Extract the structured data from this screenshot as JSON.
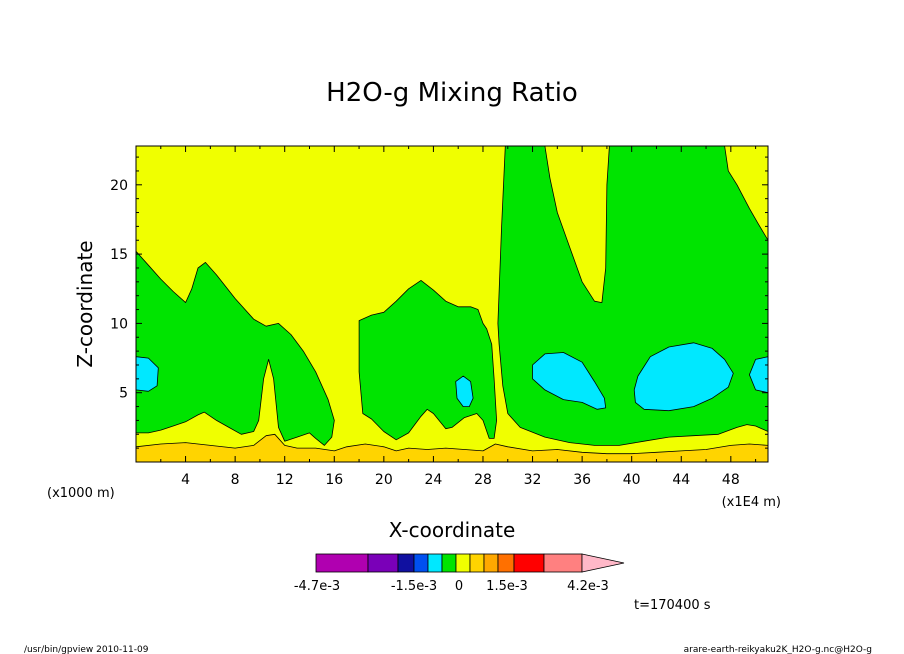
{
  "chart_data": {
    "type": "heatmap",
    "title": "H2O-g Mixing Ratio",
    "xlabel": "X-coordinate",
    "ylabel": "Z-coordinate",
    "x_units": "(x1E4 m)",
    "y_units": "(x1000 m)",
    "xlim": [
      0,
      51
    ],
    "ylim": [
      0,
      22.8
    ],
    "x_ticks": [
      4,
      8,
      12,
      16,
      20,
      24,
      28,
      32,
      36,
      40,
      44,
      48
    ],
    "y_ticks": [
      5,
      10,
      15,
      20
    ],
    "time_label": "t=170400 s",
    "colorbar": {
      "labels": [
        "-4.7e-3",
        "-1.5e-3",
        "0",
        "1.5e-3",
        "4.2e-3"
      ],
      "colors": [
        "#b000b0",
        "#7a00b8",
        "#1010a0",
        "#0050f0",
        "#00e8ff",
        "#00e400",
        "#f0ff00",
        "#ffd400",
        "#ffa800",
        "#ff7000",
        "#ff0000",
        "#ff8080",
        "#ffb8c8"
      ]
    },
    "field_levels": {
      "yellow": "#f0ff00",
      "green": "#00e400",
      "cyan": "#00e8ff",
      "orange": "#ffd400"
    },
    "regions": {
      "green_main": [
        [
          0,
          15.2
        ],
        [
          1,
          14.2
        ],
        [
          2,
          13.2
        ],
        [
          3,
          12.3
        ],
        [
          4,
          11.5
        ],
        [
          4.5,
          12.5
        ],
        [
          5,
          14.0
        ],
        [
          5.6,
          14.4
        ],
        [
          6.5,
          13.5
        ],
        [
          8,
          11.8
        ],
        [
          9.5,
          10.3
        ],
        [
          10.5,
          9.8
        ],
        [
          11.5,
          10.0
        ],
        [
          12.5,
          9.2
        ],
        [
          13.5,
          8.0
        ],
        [
          14.5,
          6.5
        ],
        [
          15.5,
          4.5
        ],
        [
          16,
          3.0
        ],
        [
          15.8,
          1.8
        ],
        [
          15.2,
          1.2
        ],
        [
          14.5,
          1.7
        ],
        [
          14,
          2.1
        ],
        [
          13,
          1.8
        ],
        [
          12,
          1.5
        ],
        [
          11.5,
          2.5
        ],
        [
          11.1,
          6.0
        ],
        [
          10.7,
          7.4
        ],
        [
          10.3,
          6.0
        ],
        [
          9.9,
          3.0
        ],
        [
          9.5,
          2.2
        ],
        [
          8.5,
          2.0
        ],
        [
          7.5,
          2.5
        ],
        [
          6.5,
          3.0
        ],
        [
          5.5,
          3.6
        ],
        [
          5,
          3.4
        ],
        [
          4,
          2.9
        ],
        [
          3,
          2.6
        ],
        [
          2,
          2.3
        ],
        [
          1,
          2.1
        ],
        [
          0,
          2.1
        ]
      ],
      "green_mid": [
        [
          18,
          10.2
        ],
        [
          19,
          10.6
        ],
        [
          20,
          10.8
        ],
        [
          21,
          11.6
        ],
        [
          22,
          12.5
        ],
        [
          23,
          13.1
        ],
        [
          24,
          12.4
        ],
        [
          25,
          11.6
        ],
        [
          26,
          11.2
        ],
        [
          27,
          11.2
        ],
        [
          27.6,
          11.0
        ],
        [
          28,
          10.0
        ],
        [
          28.3,
          9.6
        ],
        [
          28.7,
          8.5
        ],
        [
          28.9,
          6.0
        ],
        [
          29.1,
          3.0
        ],
        [
          28.9,
          1.7
        ],
        [
          28.5,
          1.7
        ],
        [
          28,
          3.0
        ],
        [
          27.5,
          3.5
        ],
        [
          26.5,
          3.2
        ],
        [
          25.5,
          2.5
        ],
        [
          25,
          2.4
        ],
        [
          24,
          3.5
        ],
        [
          23.5,
          3.8
        ],
        [
          23,
          3.3
        ],
        [
          22,
          2.1
        ],
        [
          21,
          1.6
        ],
        [
          20,
          2.2
        ],
        [
          19,
          3.1
        ],
        [
          18.3,
          3.5
        ],
        [
          18,
          6.5
        ]
      ],
      "green_right": [
        [
          29.2,
          10.0
        ],
        [
          29.5,
          17.0
        ],
        [
          29.8,
          22.8
        ],
        [
          33,
          22.8
        ],
        [
          33.4,
          20.5
        ],
        [
          34,
          18.0
        ],
        [
          35,
          15.5
        ],
        [
          36,
          13.0
        ],
        [
          37,
          11.6
        ],
        [
          37.6,
          11.5
        ],
        [
          37.9,
          14.0
        ],
        [
          38.0,
          20.0
        ],
        [
          38.2,
          22.8
        ],
        [
          47.5,
          22.8
        ],
        [
          47.8,
          21.0
        ],
        [
          48.5,
          20.0
        ],
        [
          49.5,
          18.3
        ],
        [
          50.2,
          17.2
        ],
        [
          51,
          16.0
        ],
        [
          51,
          2.2
        ],
        [
          50,
          2.6
        ],
        [
          49.3,
          2.7
        ],
        [
          48.5,
          2.5
        ],
        [
          47,
          2.0
        ],
        [
          45,
          1.9
        ],
        [
          43,
          1.8
        ],
        [
          41,
          1.5
        ],
        [
          39,
          1.2
        ],
        [
          37,
          1.2
        ],
        [
          35,
          1.4
        ],
        [
          33,
          1.8
        ],
        [
          31,
          2.5
        ],
        [
          30,
          3.5
        ],
        [
          29.6,
          5.5
        ],
        [
          29.3,
          8.5
        ]
      ],
      "cyan_1": [
        [
          0,
          7.6
        ],
        [
          1,
          7.5
        ],
        [
          1.8,
          6.8
        ],
        [
          1.7,
          5.5
        ],
        [
          1,
          5.1
        ],
        [
          0,
          5.2
        ]
      ],
      "cyan_2": [
        [
          25.8,
          5.8
        ],
        [
          26.4,
          6.2
        ],
        [
          27,
          5.8
        ],
        [
          27.2,
          4.6
        ],
        [
          26.9,
          4.0
        ],
        [
          26.4,
          4.0
        ],
        [
          25.9,
          4.6
        ]
      ],
      "cyan_3": [
        [
          32,
          7.0
        ],
        [
          33,
          7.8
        ],
        [
          34.5,
          7.9
        ],
        [
          36,
          7.2
        ],
        [
          37,
          5.8
        ],
        [
          37.8,
          4.6
        ],
        [
          37.9,
          3.9
        ],
        [
          37.2,
          3.8
        ],
        [
          36,
          4.3
        ],
        [
          34.5,
          4.5
        ],
        [
          33,
          5.2
        ],
        [
          32,
          6.0
        ]
      ],
      "cyan_4": [
        [
          40.5,
          6.2
        ],
        [
          41.5,
          7.6
        ],
        [
          43,
          8.3
        ],
        [
          45,
          8.6
        ],
        [
          46.5,
          8.2
        ],
        [
          47.5,
          7.4
        ],
        [
          48.2,
          6.4
        ],
        [
          47.8,
          5.4
        ],
        [
          46.5,
          4.6
        ],
        [
          45,
          4.0
        ],
        [
          43,
          3.7
        ],
        [
          41,
          3.8
        ],
        [
          40.3,
          4.3
        ],
        [
          40.2,
          5.2
        ]
      ],
      "cyan_5": [
        [
          51,
          7.6
        ],
        [
          50,
          7.4
        ],
        [
          49.5,
          6.3
        ],
        [
          50,
          5.2
        ],
        [
          51,
          5.0
        ]
      ],
      "orange_bottom": [
        [
          0,
          1.1
        ],
        [
          2,
          1.3
        ],
        [
          4,
          1.4
        ],
        [
          6,
          1.2
        ],
        [
          8,
          1.0
        ],
        [
          9.5,
          1.2
        ],
        [
          10.5,
          1.9
        ],
        [
          11.2,
          2.0
        ],
        [
          12,
          1.2
        ],
        [
          13,
          1.0
        ],
        [
          14.5,
          1.0
        ],
        [
          16,
          0.8
        ],
        [
          17,
          1.1
        ],
        [
          18.5,
          1.3
        ],
        [
          20,
          1.1
        ],
        [
          21,
          0.8
        ],
        [
          22,
          1.0
        ],
        [
          23.5,
          0.9
        ],
        [
          25,
          1.0
        ],
        [
          26.5,
          0.9
        ],
        [
          28,
          0.8
        ],
        [
          29,
          1.3
        ],
        [
          30,
          1.1
        ],
        [
          32,
          0.8
        ],
        [
          34,
          0.9
        ],
        [
          36,
          0.7
        ],
        [
          38,
          0.6
        ],
        [
          40,
          0.6
        ],
        [
          42,
          0.7
        ],
        [
          44,
          0.8
        ],
        [
          46,
          0.9
        ],
        [
          48,
          1.2
        ],
        [
          49.5,
          1.3
        ],
        [
          51,
          1.2
        ],
        [
          51,
          0
        ],
        [
          0,
          0
        ]
      ]
    }
  },
  "footer": {
    "left": "/usr/bin/gpview  2010-11-09",
    "right": "arare-earth-reikyaku2K_H2O-g.nc@H2O-g"
  }
}
